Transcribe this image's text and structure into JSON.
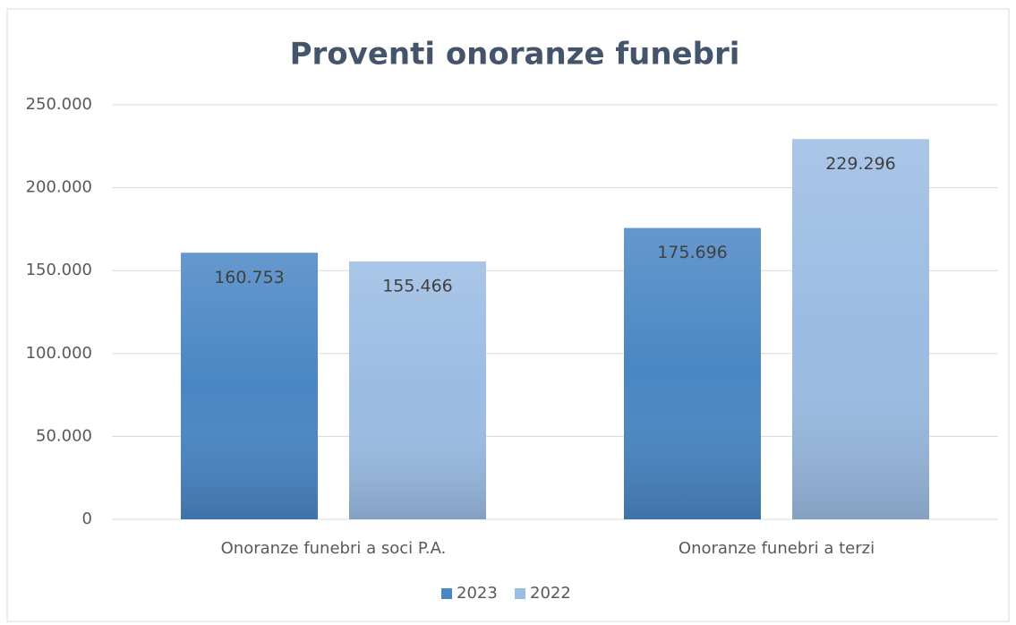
{
  "chart_data": {
    "type": "bar",
    "title": "Proventi onoranze funebri",
    "categories": [
      "Onoranze funebri a soci P.A.",
      "Onoranze funebri a terzi"
    ],
    "series": [
      {
        "name": "2023",
        "color": "#4a86c4",
        "values": [
          160753,
          175696
        ],
        "value_labels": [
          "160.753",
          "175.696"
        ]
      },
      {
        "name": "2022",
        "color": "#9bbce3",
        "values": [
          155466,
          229296
        ],
        "value_labels": [
          "155.466",
          "229.296"
        ]
      }
    ],
    "ylim": [
      0,
      250000
    ],
    "yticks": [
      0,
      {
        "value": 50000,
        "label": "50.000"
      },
      {
        "value": 100000,
        "label": "100.000"
      },
      {
        "value": 150000,
        "label": "150.000"
      },
      {
        "value": 200000,
        "label": "200.000"
      },
      {
        "value": 250000,
        "label": "250.000"
      }
    ],
    "grid": true,
    "legend": "bottom"
  }
}
